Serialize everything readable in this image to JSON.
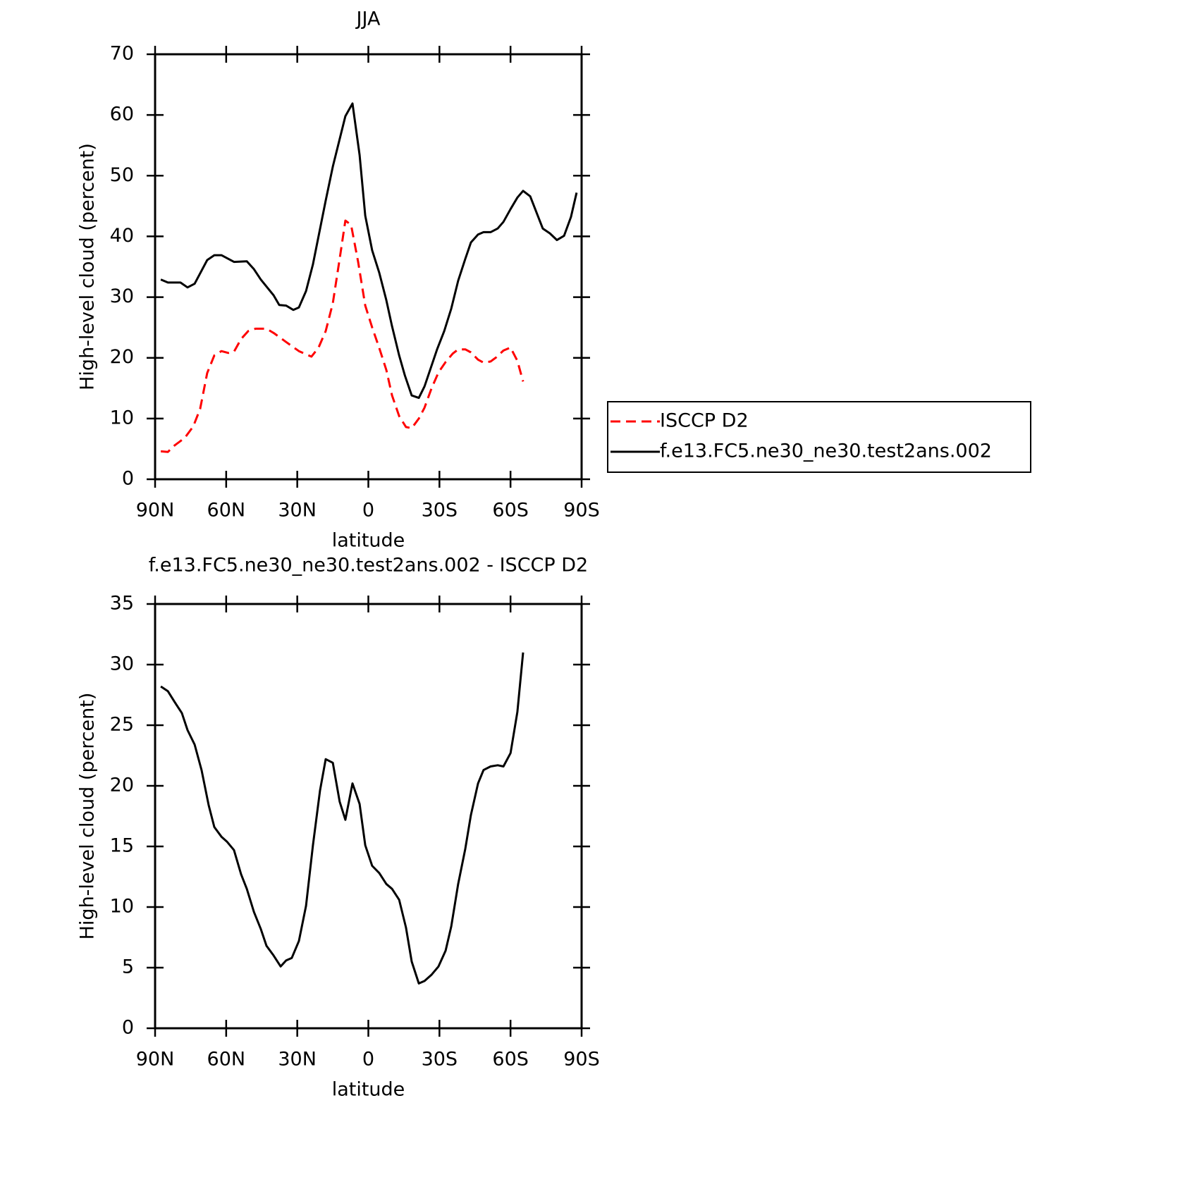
{
  "chart_data": [
    {
      "type": "line",
      "title": "JJA",
      "xlabel": "latitude",
      "ylabel": "High-level cloud (percent)",
      "xlim": [
        90,
        -90
      ],
      "xticks": [
        {
          "value": 90,
          "label": "90N"
        },
        {
          "value": 60,
          "label": "60N"
        },
        {
          "value": 30,
          "label": "30N"
        },
        0,
        {
          "value": -30,
          "label": "30S"
        },
        {
          "value": -60,
          "label": "60S"
        },
        {
          "value": -90,
          "label": "90S"
        }
      ],
      "ylim": [
        0,
        70
      ],
      "yticks": [
        0,
        10,
        20,
        30,
        40,
        50,
        60,
        70
      ],
      "legend": "outside-right",
      "series": [
        {
          "name": "ISCCP D2",
          "color": "#ff0000",
          "dashed": true,
          "x": [
            87.6,
            84.6,
            81.7,
            77.5,
            73.9,
            71.0,
            68.0,
            65.0,
            62.0,
            59.1,
            56.7,
            53.7,
            50.7,
            47.7,
            43.0,
            40.0,
            34.7,
            29.3,
            24.0,
            21.0,
            18.0,
            15.0,
            12.1,
            9.7,
            7.3,
            4.3,
            1.3,
            -1.6,
            -4.6,
            -7.6,
            -10.0,
            -13.0,
            -15.9,
            -18.3,
            -21.3,
            -23.7,
            -26.6,
            -29.6,
            -32.6,
            -35.6,
            -37.9,
            -40.9,
            -43.3,
            -46.3,
            -48.6,
            -51.6,
            -54.0,
            -57.0,
            -60.0,
            -62.9,
            -65.3
          ],
          "values": [
            4.6,
            4.5,
            5.6,
            6.8,
            8.7,
            11.6,
            17.5,
            20.4,
            21.1,
            20.8,
            21.0,
            23.1,
            24.4,
            24.8,
            24.8,
            24.1,
            22.6,
            21.1,
            20.2,
            21.7,
            24.4,
            29.0,
            36.3,
            42.6,
            41.9,
            35.8,
            28.6,
            25.0,
            21.6,
            18.0,
            13.8,
            10.4,
            8.6,
            8.4,
            10.0,
            11.8,
            14.9,
            17.6,
            19.3,
            20.7,
            21.4,
            21.4,
            20.9,
            19.7,
            19.2,
            19.4,
            20.1,
            21.2,
            21.7,
            19.5,
            16.1
          ]
        },
        {
          "name": "f.e13.FC5.ne30_ne30.test2ans.002",
          "color": "#000000",
          "dashed": false,
          "x": [
            87.6,
            84.6,
            79.3,
            76.3,
            73.3,
            68.0,
            65.0,
            62.0,
            56.7,
            51.3,
            48.3,
            45.4,
            40.0,
            37.6,
            34.7,
            31.7,
            29.3,
            26.3,
            23.4,
            20.4,
            18.0,
            15.0,
            9.7,
            6.7,
            3.7,
            1.3,
            -1.6,
            -4.6,
            -7.6,
            -10.0,
            -13.0,
            -15.4,
            -18.3,
            -21.3,
            -23.7,
            -29.0,
            -32.0,
            -35.0,
            -37.9,
            -40.9,
            -43.3,
            -46.3,
            -48.6,
            -51.6,
            -54.6,
            -57.0,
            -60.0,
            -62.9,
            -65.3,
            -68.3,
            -73.6,
            -76.6,
            -79.6,
            -82.6,
            -85.5,
            -87.9
          ],
          "values": [
            32.9,
            32.4,
            32.4,
            31.6,
            32.2,
            36.1,
            36.9,
            36.9,
            35.8,
            35.9,
            34.6,
            32.9,
            30.3,
            28.7,
            28.6,
            27.9,
            28.3,
            31.0,
            35.4,
            41.2,
            45.9,
            51.5,
            59.8,
            61.9,
            53.4,
            43.4,
            37.7,
            34.0,
            29.5,
            25.2,
            20.4,
            17.1,
            13.8,
            13.4,
            15.3,
            21.4,
            24.4,
            28.1,
            32.7,
            36.3,
            39.0,
            40.3,
            40.7,
            40.7,
            41.3,
            42.4,
            44.5,
            46.4,
            47.5,
            46.6,
            41.3,
            40.5,
            39.4,
            40.1,
            43.2,
            47.2
          ]
        }
      ]
    },
    {
      "type": "line",
      "title": "f.e13.FC5.ne30_ne30.test2ans.002 - ISCCP D2",
      "xlabel": "latitude",
      "ylabel": "High-level cloud (percent)",
      "xlim": [
        90,
        -90
      ],
      "xticks": [
        {
          "value": 90,
          "label": "90N"
        },
        {
          "value": 60,
          "label": "60N"
        },
        {
          "value": 30,
          "label": "30N"
        },
        0,
        {
          "value": -30,
          "label": "30S"
        },
        {
          "value": -60,
          "label": "60S"
        },
        {
          "value": -90,
          "label": "90S"
        }
      ],
      "ylim": [
        0,
        35
      ],
      "yticks": [
        0,
        5,
        10,
        15,
        20,
        25,
        30,
        35
      ],
      "series": [
        {
          "color": "#000000",
          "dashed": false,
          "x": [
            87.6,
            84.6,
            81.7,
            78.7,
            76.3,
            73.3,
            70.4,
            67.4,
            65.0,
            62.0,
            59.7,
            56.7,
            53.7,
            51.3,
            48.3,
            45.4,
            43.0,
            40.0,
            37.0,
            34.7,
            32.3,
            29.3,
            26.3,
            23.4,
            20.4,
            18.0,
            15.0,
            12.1,
            9.7,
            6.7,
            3.7,
            1.3,
            -1.6,
            -4.6,
            -7.6,
            -10.0,
            -13.0,
            -15.9,
            -18.3,
            -21.3,
            -23.7,
            -26.6,
            -29.6,
            -32.6,
            -35.0,
            -37.9,
            -40.9,
            -43.3,
            -46.3,
            -48.6,
            -51.6,
            -54.6,
            -57.0,
            -60.0,
            -62.9,
            -65.3
          ],
          "values": [
            28.2,
            27.8,
            26.9,
            26.0,
            24.6,
            23.4,
            21.3,
            18.4,
            16.6,
            15.8,
            15.4,
            14.7,
            12.7,
            11.5,
            9.6,
            8.2,
            6.8,
            6.0,
            5.1,
            5.6,
            5.8,
            7.2,
            10.1,
            15.1,
            19.6,
            22.2,
            21.9,
            18.7,
            17.2,
            20.2,
            18.5,
            15.1,
            13.4,
            12.8,
            11.9,
            11.5,
            10.6,
            8.3,
            5.5,
            3.7,
            3.9,
            4.4,
            5.1,
            6.4,
            8.4,
            11.9,
            14.8,
            17.6,
            20.2,
            21.3,
            21.6,
            21.7,
            21.6,
            22.7,
            26.1,
            31.0
          ]
        }
      ]
    }
  ]
}
